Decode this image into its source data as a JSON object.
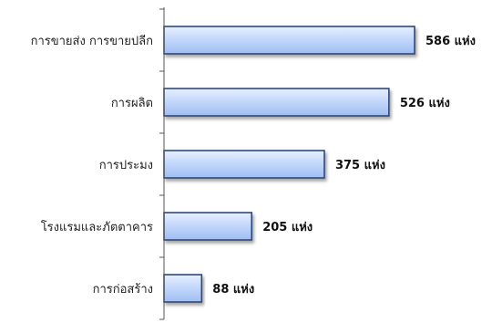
{
  "chart_data": {
    "type": "bar",
    "orientation": "horizontal",
    "categories": [
      "การขายส่ง การขายปลีก",
      "การผลิต",
      "การประมง",
      "โรงแรมและภัตตาคาร",
      "การก่อสร้าง"
    ],
    "values": [
      586,
      526,
      375,
      205,
      88
    ],
    "value_labels": [
      "586 แห่ง",
      "526 แห่ง",
      "375 แห่ง",
      "205 แห่ง",
      "88 แห่ง"
    ],
    "xlim": [
      0,
      586
    ],
    "grid": false,
    "legend": "none",
    "colors": {
      "bar_fill_light": "#e6efff",
      "bar_fill_mid": "#c5d8fb",
      "bar_fill_dark": "#9fbdf3",
      "bar_stroke": "#2f4a7a",
      "axis": "#555555"
    }
  }
}
